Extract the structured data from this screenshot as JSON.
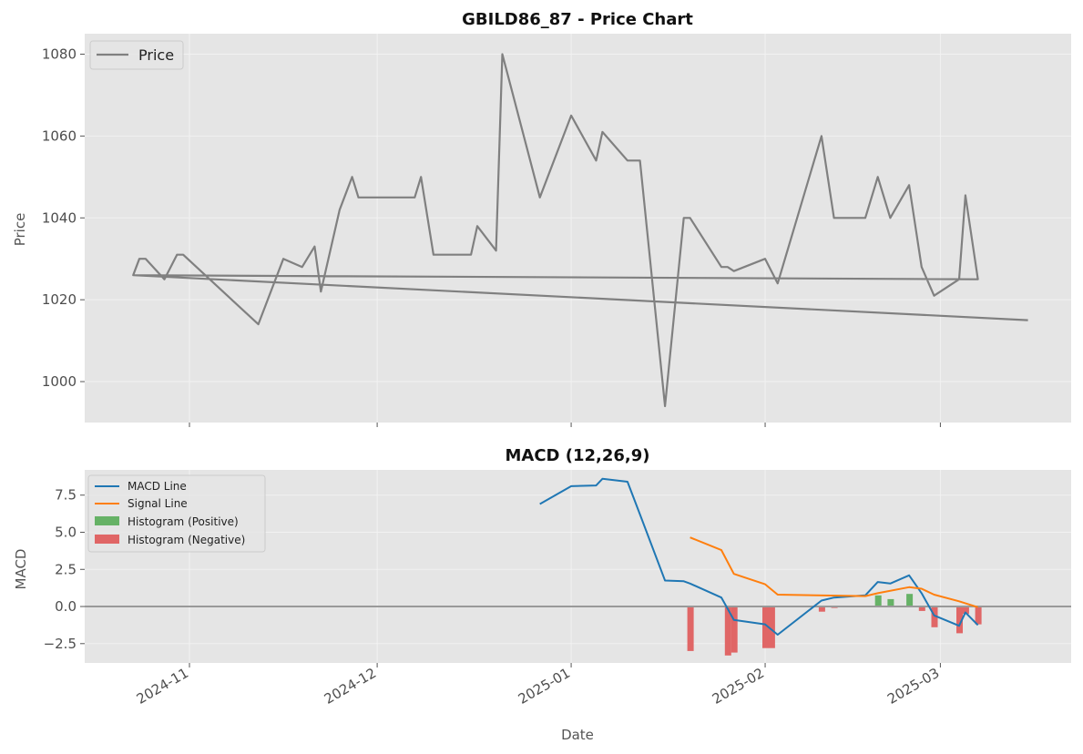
{
  "chart_data": [
    {
      "type": "line",
      "title": "GBILD86_87 - Price Chart",
      "ylabel": "Price",
      "ylim": [
        990,
        1085
      ],
      "yticks": [
        1000,
        1020,
        1040,
        1060,
        1080
      ],
      "grid": true,
      "legend": "top-left",
      "series": [
        {
          "name": "Price",
          "color": "#808080",
          "points": [
            [
              "2024-10-23",
              1026
            ],
            [
              "2024-10-24",
              1030
            ],
            [
              "2024-10-25",
              1030
            ],
            [
              "2024-10-28",
              1025
            ],
            [
              "2024-10-30",
              1031
            ],
            [
              "2024-10-31",
              1031
            ],
            [
              "2024-11-12",
              1014
            ],
            [
              "2024-11-16",
              1030
            ],
            [
              "2024-11-19",
              1028
            ],
            [
              "2024-11-21",
              1033
            ],
            [
              "2024-11-22",
              1022
            ],
            [
              "2024-11-25",
              1042
            ],
            [
              "2024-11-27",
              1050
            ],
            [
              "2024-11-28",
              1045
            ],
            [
              "2024-12-07",
              1045
            ],
            [
              "2024-12-08",
              1050
            ],
            [
              "2024-12-10",
              1031
            ],
            [
              "2024-12-16",
              1031
            ],
            [
              "2024-12-17",
              1038
            ],
            [
              "2024-12-20",
              1032
            ],
            [
              "2024-12-21",
              1080
            ],
            [
              "2024-12-27",
              1045
            ],
            [
              "2025-01-01",
              1065
            ],
            [
              "2025-01-05",
              1054
            ],
            [
              "2025-01-06",
              1061
            ],
            [
              "2025-01-10",
              1054
            ],
            [
              "2025-01-12",
              1054
            ],
            [
              "2025-01-16",
              994
            ],
            [
              "2025-01-19",
              1040
            ],
            [
              "2025-01-20",
              1040
            ],
            [
              "2025-01-25",
              1028
            ],
            [
              "2025-01-26",
              1028
            ],
            [
              "2025-01-27",
              1027
            ],
            [
              "2025-02-01",
              1030
            ],
            [
              "2025-02-03",
              1024
            ],
            [
              "2025-02-10",
              1060
            ],
            [
              "2025-02-12",
              1040
            ],
            [
              "2025-02-17",
              1040
            ],
            [
              "2025-02-19",
              1050
            ],
            [
              "2025-02-21",
              1040
            ],
            [
              "2025-02-24",
              1048
            ],
            [
              "2025-02-26",
              1028
            ],
            [
              "2025-02-28",
              1021
            ],
            [
              "2025-03-04",
              1025
            ],
            [
              "2025-03-05",
              1045.5
            ],
            [
              "2025-03-07",
              1025
            ],
            [
              "2024-10-23",
              1026
            ],
            [
              "2025-03-15",
              1015
            ]
          ]
        }
      ]
    },
    {
      "type": "line",
      "title": "MACD (12,26,9)",
      "xlabel": "Date",
      "ylabel": "MACD",
      "ylim": [
        -3.8,
        9.2
      ],
      "yticks": [
        -2.5,
        0.0,
        2.5,
        5.0,
        7.5
      ],
      "xticks": [
        "2024-11",
        "2024-12",
        "2025-01",
        "2025-02",
        "2025-03"
      ],
      "grid": true,
      "legend": "top-left",
      "series": [
        {
          "name": "MACD Line",
          "color": "#1f77b4",
          "points": [
            [
              "2024-12-27",
              6.9
            ],
            [
              "2025-01-01",
              8.1
            ],
            [
              "2025-01-05",
              8.15
            ],
            [
              "2025-01-06",
              8.6
            ],
            [
              "2025-01-10",
              8.4
            ],
            [
              "2025-01-12",
              6.2
            ],
            [
              "2025-01-16",
              1.75
            ],
            [
              "2025-01-19",
              1.7
            ],
            [
              "2025-01-20",
              1.55
            ],
            [
              "2025-01-25",
              0.6
            ],
            [
              "2025-01-27",
              -0.9
            ],
            [
              "2025-02-01",
              -1.2
            ],
            [
              "2025-02-03",
              -1.9
            ],
            [
              "2025-02-10",
              0.4
            ],
            [
              "2025-02-12",
              0.6
            ],
            [
              "2025-02-17",
              0.75
            ],
            [
              "2025-02-19",
              1.65
            ],
            [
              "2025-02-21",
              1.55
            ],
            [
              "2025-02-24",
              2.1
            ],
            [
              "2025-02-26",
              0.9
            ],
            [
              "2025-02-28",
              -0.6
            ],
            [
              "2025-03-04",
              -1.3
            ],
            [
              "2025-03-05",
              -0.4
            ],
            [
              "2025-03-07",
              -1.25
            ]
          ]
        },
        {
          "name": "Signal Line",
          "color": "#ff7f0e",
          "points": [
            [
              "2025-01-20",
              4.65
            ],
            [
              "2025-01-25",
              3.8
            ],
            [
              "2025-01-27",
              2.2
            ],
            [
              "2025-02-01",
              1.5
            ],
            [
              "2025-02-03",
              0.8
            ],
            [
              "2025-02-17",
              0.7
            ],
            [
              "2025-02-19",
              0.9
            ],
            [
              "2025-02-24",
              1.3
            ],
            [
              "2025-02-26",
              1.2
            ],
            [
              "2025-02-28",
              0.8
            ],
            [
              "2025-03-04",
              0.35
            ],
            [
              "2025-03-07",
              -0.05
            ]
          ]
        },
        {
          "name": "Histogram (Positive)",
          "type": "bar",
          "color": "#66b266",
          "points": [
            [
              "2025-02-19",
              0.75
            ],
            [
              "2025-02-21",
              0.5
            ],
            [
              "2025-02-24",
              0.85
            ]
          ]
        },
        {
          "name": "Histogram (Negative)",
          "type": "bar",
          "color": "#e06666",
          "points": [
            [
              "2025-01-20",
              -3.0
            ],
            [
              "2025-01-26",
              -3.3
            ],
            [
              "2025-01-27",
              -3.1
            ],
            [
              "2025-02-01",
              -2.8
            ],
            [
              "2025-02-02",
              -2.8
            ],
            [
              "2025-02-10",
              -0.35
            ],
            [
              "2025-02-12",
              -0.1
            ],
            [
              "2025-02-26",
              -0.3
            ],
            [
              "2025-02-28",
              -1.4
            ],
            [
              "2025-03-04",
              -1.8
            ],
            [
              "2025-03-05",
              -0.5
            ],
            [
              "2025-03-07",
              -1.2
            ]
          ]
        }
      ]
    }
  ]
}
